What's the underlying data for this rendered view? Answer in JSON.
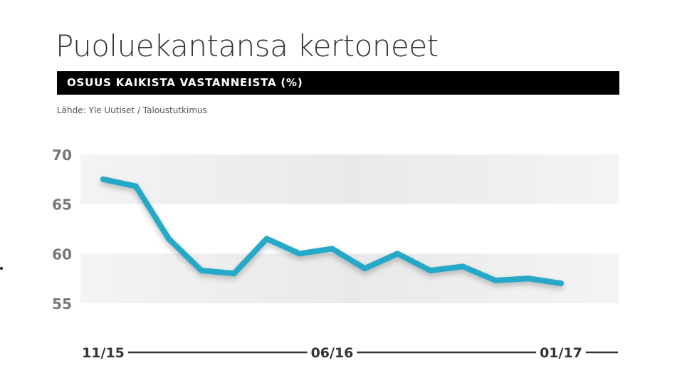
{
  "header": {
    "title": "Puoluekantansa kertoneet",
    "subtitle": "OSUUS KAIKISTA VASTANNEISTA (%)",
    "source": "Lähde: Yle Uutiset / Taloustutkimus"
  },
  "chart_data": {
    "type": "line",
    "title": "Puoluekantansa kertoneet",
    "subtitle": "OSUUS KAIKISTA VASTANNEISTA (%)",
    "xlabel": "",
    "ylabel": "",
    "ylim": [
      55,
      70
    ],
    "y_ticks": [
      70,
      65,
      60,
      55
    ],
    "x_tick_labels": [
      {
        "label": "11/15",
        "index": 0
      },
      {
        "label": "06/16",
        "index": 7
      },
      {
        "label": "01/17",
        "index": 14
      }
    ],
    "grid": "alternating horizontal bands",
    "legend": "none",
    "line_color": "#27a9c9",
    "series": [
      {
        "values": [
          67.5,
          66.8,
          61.5,
          58.3,
          58.0,
          61.5,
          60.0,
          60.5,
          58.5,
          60.0,
          58.3,
          58.7,
          57.3,
          57.5,
          57.0
        ]
      }
    ]
  }
}
